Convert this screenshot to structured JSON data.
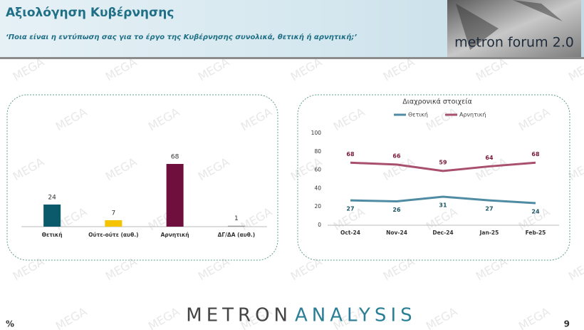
{
  "header": {
    "title": "Αξιολόγηση Κυβέρνησης",
    "subtitle": "‘Ποια είναι η εντύπωση σας για το έργο της Κυβέρνησης συνολικά, θετική ή αρνητική;’"
  },
  "logo": "metron forum 2.0",
  "watermark": "MEGA",
  "chart_data": [
    {
      "type": "bar",
      "categories": [
        "Θετική",
        "Ούτε-ούτε (αυθ.)",
        "Αρνητική",
        "ΔΓ/ΔΑ (αυθ.)"
      ],
      "values": [
        24,
        7,
        68,
        1
      ],
      "colors": [
        "#0b5a6b",
        "#f5c400",
        "#6e0f3d",
        "#9a9a9a"
      ]
    },
    {
      "type": "line",
      "title": "Διαχρονικά στοιχεία",
      "categories": [
        "Oct-24",
        "Nov-24",
        "Dec-24",
        "Jan-25",
        "Feb-25"
      ],
      "series": [
        {
          "name": "Θετική",
          "color": "#4f8ca3",
          "label_color": "#1d5566",
          "values": [
            27,
            26,
            31,
            27,
            24
          ]
        },
        {
          "name": "Αρνητική",
          "color": "#a9506e",
          "label_color": "#7a1a3d",
          "values": [
            68,
            66,
            59,
            64,
            68
          ]
        }
      ],
      "ylim": [
        0,
        100
      ],
      "yticks": [
        0,
        20,
        40,
        60,
        80,
        100
      ],
      "legend": "top"
    }
  ],
  "footer": {
    "brand_left": "METRON",
    "brand_right": "ANALYSIS",
    "symbol": "%",
    "page": "9"
  }
}
